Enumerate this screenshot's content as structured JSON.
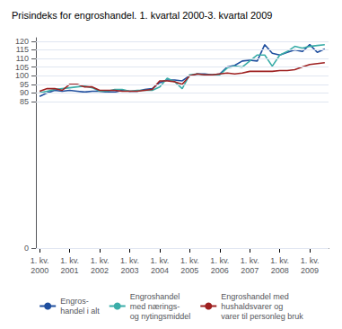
{
  "chart_data": {
    "type": "line",
    "title": "Prisindeks for engroshandel. 1. kvartal 2000-3. kvartal 2009",
    "categories": [
      "1. kv.\n2000",
      null,
      null,
      null,
      "1. kv.\n2001",
      null,
      null,
      null,
      "1. kv.\n2002",
      null,
      null,
      null,
      "1. kv.\n2003",
      null,
      null,
      null,
      "1. kv.\n2004",
      null,
      null,
      null,
      "1. kv.\n2005",
      null,
      null,
      null,
      "1. kv.\n2006",
      null,
      null,
      null,
      "1. kv.\n2007",
      null,
      null,
      null,
      "1. kv.\n2008",
      null,
      null,
      null,
      "1. kv.\n2009",
      null,
      null
    ],
    "series": [
      {
        "name": "Engros-\nhandel i alt",
        "color": "#1f4e9e",
        "values": [
          88.0,
          90.0,
          91.5,
          91.0,
          91.5,
          91.0,
          90.5,
          91.0,
          91.0,
          90.5,
          90.5,
          91.5,
          91.0,
          91.0,
          92.0,
          92.5,
          96.0,
          97.5,
          97.5,
          97.0,
          100.0,
          101.0,
          101.0,
          100.5,
          101.0,
          105.0,
          106.0,
          108.5,
          109.0,
          108.5,
          118.0,
          113.0,
          112.0,
          113.5,
          115.0,
          114.0,
          118.0,
          113.5,
          115.5
        ]
      },
      {
        "name": "Engroshandel\nmed nærings-\nog nytingsmiddel",
        "color": "#3aada8",
        "values": [
          90.0,
          91.0,
          92.0,
          92.5,
          93.0,
          93.5,
          94.0,
          93.0,
          91.0,
          91.0,
          92.0,
          92.0,
          91.0,
          91.5,
          91.5,
          91.5,
          93.5,
          98.5,
          96.5,
          92.5,
          100.5,
          101.0,
          100.5,
          100.5,
          100.5,
          104.5,
          105.5,
          105.0,
          108.5,
          112.0,
          112.0,
          105.5,
          112.0,
          114.0,
          117.0,
          116.0,
          117.0,
          117.5,
          118.0
        ]
      },
      {
        "name": "Engroshandel med\nhushaldsvarer og\nvarer til personleg bruk",
        "color": "#9e2020",
        "values": [
          91.0,
          92.5,
          92.5,
          91.5,
          95.0,
          95.0,
          93.5,
          93.5,
          91.5,
          91.5,
          91.5,
          91.0,
          91.0,
          91.0,
          91.5,
          92.0,
          97.0,
          97.0,
          96.5,
          95.0,
          100.0,
          101.0,
          100.5,
          100.5,
          101.0,
          101.5,
          101.0,
          101.5,
          102.5,
          102.5,
          102.5,
          102.5,
          103.0,
          103.0,
          103.5,
          105.0,
          106.5,
          107.0,
          107.5
        ]
      }
    ],
    "ylim": [
      0,
      122
    ],
    "yticks": [
      0,
      85,
      90,
      95,
      100,
      105,
      110,
      115,
      120
    ],
    "grid": true,
    "legend": "bottom"
  }
}
